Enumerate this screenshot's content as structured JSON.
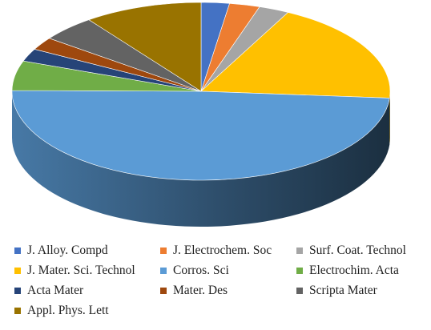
{
  "chart_data": {
    "type": "pie",
    "title": "",
    "style": "3d",
    "legend_position": "bottom",
    "categories": [
      "J. Alloy. Compd",
      "J. Electrochem. Soc",
      "Surf. Coat. Technol",
      "J. Mater. Sci. Technol",
      "Corros. Sci",
      " Electrochim. Acta",
      "Acta Mater",
      "Mater. Des",
      "Scripta Mater",
      "Appl. Phys. Lett"
    ],
    "values": [
      2.5,
      2.7,
      2.7,
      19.3,
      50.8,
      5.6,
      2.4,
      2.4,
      4.9,
      10.5
    ],
    "colors": [
      "#4472C4",
      "#ED7D31",
      "#A5A5A5",
      "#FFC000",
      "#5B9BD5",
      "#70AD47",
      "#264478",
      "#9E480E",
      "#636363",
      "#997300"
    ]
  }
}
